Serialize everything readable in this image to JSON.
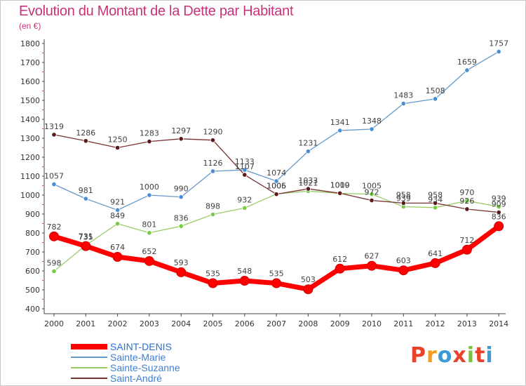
{
  "title": "Evolution du Montant de la Dette par Habitant",
  "subtitle": "(en €)",
  "brand": {
    "logo_text": "Proxiti",
    "colors": [
      "#e8412c",
      "#f59e1b",
      "#3a9bd5",
      "#e8412c",
      "#7cc242",
      "#e8412c",
      "#3a9bd5"
    ]
  },
  "chart_data": {
    "type": "line",
    "title": "Evolution du Montant de la Dette par Habitant",
    "subtitle": "(en €)",
    "xlabel": "",
    "ylabel": "",
    "x": [
      "2000",
      "2001",
      "2002",
      "2003",
      "2004",
      "2005",
      "2006",
      "2007",
      "2008",
      "2009",
      "2010",
      "2011",
      "2012",
      "2013",
      "2014"
    ],
    "ylim": [
      400,
      1800
    ],
    "yticks": [
      400,
      500,
      600,
      700,
      800,
      900,
      1000,
      1100,
      1200,
      1300,
      1400,
      1500,
      1600,
      1700,
      1800
    ],
    "grid": false,
    "legend_position": "bottom-left",
    "series": [
      {
        "name": "SAINT-DENIS",
        "color": "#ff0000",
        "emphasis": true,
        "values": [
          782,
          731,
          674,
          652,
          593,
          535,
          548,
          535,
          503,
          612,
          627,
          603,
          641,
          712,
          836
        ]
      },
      {
        "name": "Sainte-Marie",
        "color": "#6699cc",
        "point_color": "#4a8fd4",
        "values": [
          1057,
          981,
          921,
          1000,
          990,
          1126,
          1133,
          1074,
          1231,
          1341,
          1348,
          1483,
          1508,
          1659,
          1757
        ]
      },
      {
        "name": "Sainte-Suzanne",
        "color": "#99cc66",
        "point_color": "#77cc44",
        "values": [
          598,
          735,
          849,
          801,
          836,
          898,
          932,
          1006,
          1021,
          1009,
          1005,
          939,
          934,
          970,
          939
        ]
      },
      {
        "name": "Saint-André",
        "color": "#7a3333",
        "point_color": "#5a1a1a",
        "values": [
          1319,
          1286,
          1250,
          1283,
          1297,
          1290,
          1107,
          1005,
          1033,
          1010,
          972,
          958,
          958,
          926,
          909
        ]
      }
    ]
  }
}
